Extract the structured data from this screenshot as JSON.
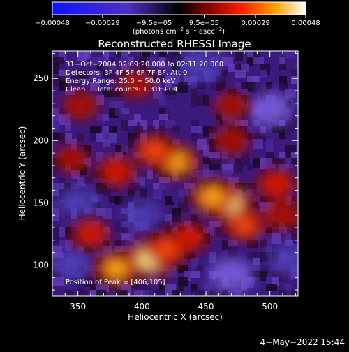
{
  "chart_data": {
    "type": "heatmap",
    "title": "Reconstructed RHESSI Image",
    "xlabel": "Heliocentric X (arcsec)",
    "ylabel": "Heliocentric Y (arcsec)",
    "xlim": [
      330,
      522
    ],
    "ylim": [
      75,
      272
    ],
    "x_ticks": [
      "350",
      "400",
      "450",
      "500"
    ],
    "y_ticks": [
      "100",
      "150",
      "200",
      "250"
    ],
    "x_tick_values": [
      350,
      400,
      450,
      500
    ],
    "y_tick_values": [
      100,
      150,
      200,
      250
    ],
    "colorbar": {
      "label_parts": [
        "(photons cm",
        "−2",
        " s",
        "−1",
        " asec",
        "−2",
        ")"
      ],
      "ticks": [
        "−0.00048",
        "−0.00029",
        "−9.5e−05",
        "9.5e−05",
        "0.00029",
        "0.00048"
      ],
      "tick_values": [
        -0.00048,
        -0.00029,
        -9.5e-05,
        9.5e-05,
        0.00029,
        0.00048
      ],
      "range": [
        -0.00048,
        0.00048
      ]
    },
    "annotations": [
      "31−Oct−2004 02:09:20.000 to 02:11:20.000",
      "Detectors: 3F 4F 5F 6F 7F 8F, Att 0",
      "Energy Range: 25.0 − 50.0 keV",
      "Clean     Total counts: 1.31E+04"
    ],
    "peak_label": "Position of Peak = [406,105]",
    "bright_regions": [
      {
        "x": 468,
        "y": 150,
        "level": 0.95
      },
      {
        "x": 455,
        "y": 155,
        "level": 0.8
      },
      {
        "x": 406,
        "y": 105,
        "level": 1.0
      },
      {
        "x": 420,
        "y": 113,
        "level": 0.75
      },
      {
        "x": 380,
        "y": 97,
        "level": 0.8
      },
      {
        "x": 427,
        "y": 183,
        "level": 0.8
      },
      {
        "x": 410,
        "y": 192,
        "level": 0.7
      },
      {
        "x": 380,
        "y": 175,
        "level": 0.6
      },
      {
        "x": 360,
        "y": 125,
        "level": 0.55
      },
      {
        "x": 505,
        "y": 165,
        "level": 0.6
      },
      {
        "x": 470,
        "y": 200,
        "level": 0.45
      },
      {
        "x": 470,
        "y": 228,
        "level": 0.4
      },
      {
        "x": 395,
        "y": 245,
        "level": 0.45
      },
      {
        "x": 352,
        "y": 228,
        "level": 0.45
      },
      {
        "x": 345,
        "y": 185,
        "level": 0.4
      },
      {
        "x": 437,
        "y": 122,
        "level": 0.55
      },
      {
        "x": 480,
        "y": 132,
        "level": 0.65
      },
      {
        "x": 510,
        "y": 140,
        "level": 0.5
      }
    ],
    "dim_regions": [
      {
        "x": 500,
        "y": 225,
        "level": 0.85
      },
      {
        "x": 470,
        "y": 92,
        "level": 0.8
      },
      {
        "x": 345,
        "y": 100,
        "level": 0.7
      },
      {
        "x": 350,
        "y": 150,
        "level": 0.75
      },
      {
        "x": 445,
        "y": 260,
        "level": 0.7
      },
      {
        "x": 400,
        "y": 140,
        "level": 0.45
      },
      {
        "x": 515,
        "y": 105,
        "level": 0.7
      }
    ]
  },
  "footer": {
    "date": "4−May−2022 15:44"
  },
  "colors": {
    "background": "#000000",
    "text": "#ffffff"
  }
}
